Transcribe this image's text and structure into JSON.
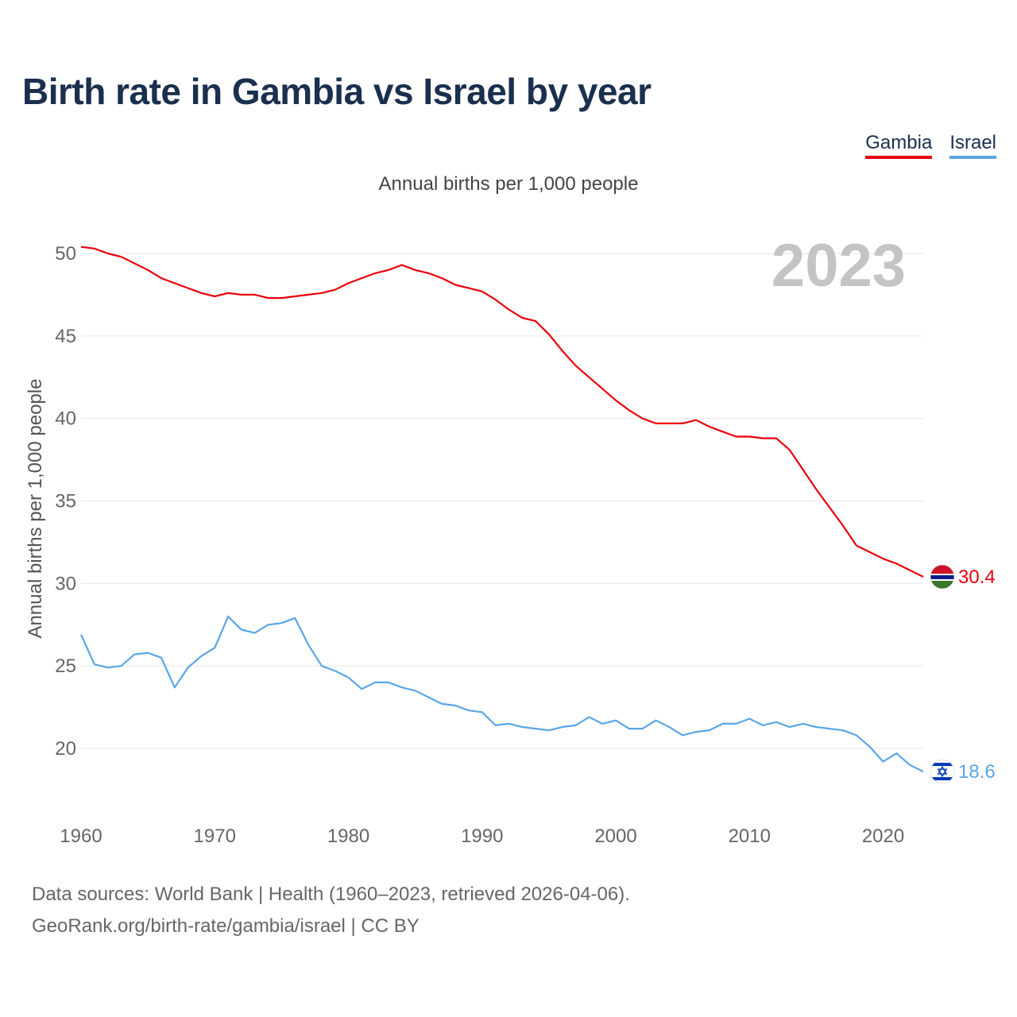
{
  "title": "Birth rate in Gambia vs Israel by year",
  "subtitle": "Annual births per 1,000 people",
  "legend": [
    {
      "name": "Gambia",
      "color": "#e8000b"
    },
    {
      "name": "Israel",
      "color": "#5aa6e6"
    }
  ],
  "footer": {
    "line1": "Data sources: World Bank | Health (1960–2023, retrieved 2026-04-06).",
    "line2": "GeoRank.org/birth-rate/gambia/israel | CC BY"
  },
  "chart_data": {
    "type": "line",
    "title": "Birth rate in Gambia vs Israel by year",
    "ylabel": "Annual births per 1,000 people",
    "xlabel": "",
    "year_label": "2023",
    "xlim": [
      1960,
      2023
    ],
    "ylim": [
      16,
      52
    ],
    "yticks": [
      20,
      25,
      30,
      35,
      40,
      45,
      50
    ],
    "xticks": [
      1960,
      1970,
      1980,
      1990,
      2000,
      2010,
      2020
    ],
    "x": [
      1960,
      1961,
      1962,
      1963,
      1964,
      1965,
      1966,
      1967,
      1968,
      1969,
      1970,
      1971,
      1972,
      1973,
      1974,
      1975,
      1976,
      1977,
      1978,
      1979,
      1980,
      1981,
      1982,
      1983,
      1984,
      1985,
      1986,
      1987,
      1988,
      1989,
      1990,
      1991,
      1992,
      1993,
      1994,
      1995,
      1996,
      1997,
      1998,
      1999,
      2000,
      2001,
      2002,
      2003,
      2004,
      2005,
      2006,
      2007,
      2008,
      2009,
      2010,
      2011,
      2012,
      2013,
      2014,
      2015,
      2016,
      2017,
      2018,
      2019,
      2020,
      2021,
      2022,
      2023
    ],
    "series": [
      {
        "name": "Gambia",
        "color": "#e8000b",
        "end_label": "30.4",
        "values": [
          50.4,
          50.3,
          50.0,
          49.8,
          49.4,
          49.0,
          48.5,
          48.2,
          47.9,
          47.6,
          47.4,
          47.6,
          47.5,
          47.5,
          47.3,
          47.3,
          47.4,
          47.5,
          47.6,
          47.8,
          48.2,
          48.5,
          48.8,
          49.0,
          49.3,
          49.0,
          48.8,
          48.5,
          48.1,
          47.9,
          47.7,
          47.2,
          46.6,
          46.1,
          45.9,
          45.1,
          44.1,
          43.2,
          42.5,
          41.8,
          41.1,
          40.5,
          40.0,
          39.7,
          39.7,
          39.7,
          39.9,
          39.5,
          39.2,
          38.9,
          38.9,
          38.8,
          38.8,
          38.1,
          36.9,
          35.7,
          34.6,
          33.5,
          32.3,
          31.9,
          31.5,
          31.2,
          30.8,
          30.4
        ]
      },
      {
        "name": "Israel",
        "color": "#5aa6e6",
        "end_label": "18.6",
        "values": [
          26.9,
          25.1,
          24.9,
          25.0,
          25.7,
          25.8,
          25.5,
          23.7,
          24.9,
          25.6,
          26.1,
          28.0,
          27.2,
          27.0,
          27.5,
          27.6,
          27.9,
          26.3,
          25.0,
          24.7,
          24.3,
          23.6,
          24.0,
          24.0,
          23.7,
          23.5,
          23.1,
          22.7,
          22.6,
          22.3,
          22.2,
          21.4,
          21.5,
          21.3,
          21.2,
          21.1,
          21.3,
          21.4,
          21.9,
          21.5,
          21.7,
          21.2,
          21.2,
          21.7,
          21.3,
          20.8,
          21.0,
          21.1,
          21.5,
          21.5,
          21.8,
          21.4,
          21.6,
          21.3,
          21.5,
          21.3,
          21.2,
          21.1,
          20.8,
          20.1,
          19.2,
          19.7,
          19.0,
          18.6
        ]
      }
    ]
  }
}
